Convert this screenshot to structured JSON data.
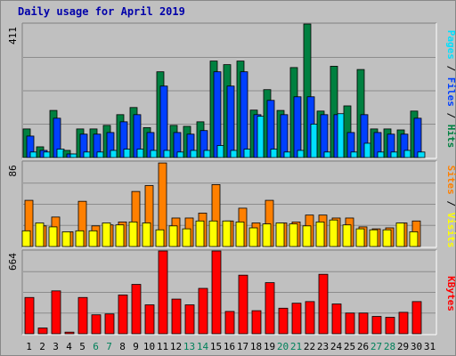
{
  "title": "Daily usage for April 2019",
  "chart_data": [
    {
      "type": "bar",
      "panel": "hits-files-pages",
      "ymax_label": "411",
      "ylim": [
        0,
        411
      ],
      "grid": true,
      "legend": [
        {
          "name": "Pages",
          "color": "#00e0ff"
        },
        {
          "name": "Files",
          "color": "#0040ff"
        },
        {
          "name": "Hits",
          "color": "#008040"
        }
      ],
      "categories": [
        "1",
        "2",
        "3",
        "4",
        "5",
        "6",
        "7",
        "8",
        "9",
        "10",
        "11",
        "12",
        "13",
        "14",
        "15",
        "16",
        "17",
        "18",
        "19",
        "20",
        "21",
        "22",
        "23",
        "24",
        "25",
        "26",
        "27",
        "28",
        "29",
        "30",
        "31"
      ],
      "weekend_days": [
        "6",
        "7",
        "13",
        "14",
        "20",
        "21",
        "27",
        "28"
      ],
      "series": [
        {
          "name": "Hits",
          "color": "#008040",
          "values": [
            88,
            33,
            145,
            22,
            88,
            88,
            99,
            132,
            154,
            92,
            264,
            99,
            96,
            110,
            297,
            286,
            297,
            146,
            209,
            145,
            277,
            411,
            143,
            281,
            159,
            271,
            88,
            88,
            85,
            143,
            null
          ]
        },
        {
          "name": "Files",
          "color": "#0040ff",
          "values": [
            66,
            22,
            121,
            11,
            72,
            72,
            77,
            110,
            132,
            77,
            220,
            77,
            72,
            83,
            264,
            220,
            264,
            132,
            176,
            132,
            187,
            187,
            132,
            132,
            77,
            132,
            77,
            72,
            72,
            121,
            null
          ]
        },
        {
          "name": "Pages",
          "color": "#00e0ff",
          "values": [
            17,
            17,
            26,
            11,
            17,
            17,
            22,
            26,
            26,
            22,
            22,
            17,
            22,
            22,
            37,
            22,
            26,
            127,
            26,
            17,
            22,
            103,
            17,
            135,
            17,
            44,
            17,
            17,
            22,
            17,
            null
          ]
        }
      ]
    },
    {
      "type": "bar",
      "panel": "visits-sites",
      "ymax_label": "86",
      "ylim": [
        0,
        86
      ],
      "grid": true,
      "legend": [
        {
          "name": "Sites",
          "color": "#ff8000"
        },
        {
          "name": "Visits",
          "color": "#ffff00"
        }
      ],
      "categories": [
        "1",
        "2",
        "3",
        "4",
        "5",
        "6",
        "7",
        "8",
        "9",
        "10",
        "11",
        "12",
        "13",
        "14",
        "15",
        "16",
        "17",
        "18",
        "19",
        "20",
        "21",
        "22",
        "23",
        "24",
        "25",
        "26",
        "27",
        "28",
        "29",
        "30",
        "31"
      ],
      "series": [
        {
          "name": "Sites",
          "color": "#ff8000",
          "values": [
            47,
            21,
            30,
            15,
            46,
            21,
            22,
            25,
            56,
            62,
            85,
            29,
            29,
            34,
            63,
            26,
            39,
            24,
            47,
            24,
            25,
            32,
            32,
            29,
            29,
            20,
            18,
            19,
            24,
            26,
            null
          ]
        },
        {
          "name": "Visits",
          "color": "#ffff00",
          "values": [
            16,
            24,
            20,
            15,
            16,
            16,
            24,
            22,
            25,
            24,
            17,
            21,
            18,
            26,
            26,
            26,
            25,
            19,
            23,
            24,
            23,
            21,
            25,
            27,
            22,
            18,
            17,
            17,
            24,
            15,
            null
          ]
        }
      ]
    },
    {
      "type": "bar",
      "panel": "kbytes",
      "ymax_label": "664",
      "ylim": [
        0,
        664
      ],
      "grid": true,
      "legend": [
        {
          "name": "KBytes",
          "color": "#ff0000"
        }
      ],
      "categories": [
        "1",
        "2",
        "3",
        "4",
        "5",
        "6",
        "7",
        "8",
        "9",
        "10",
        "11",
        "12",
        "13",
        "14",
        "15",
        "16",
        "17",
        "18",
        "19",
        "20",
        "21",
        "22",
        "23",
        "24",
        "25",
        "26",
        "27",
        "28",
        "29",
        "30",
        "31"
      ],
      "series": [
        {
          "name": "KBytes",
          "color": "#ff0000",
          "values": [
            291,
            46,
            344,
            13,
            291,
            152,
            159,
            311,
            396,
            232,
            664,
            278,
            232,
            364,
            664,
            179,
            470,
            185,
            410,
            205,
            245,
            258,
            477,
            239,
            166,
            166,
            139,
            132,
            172,
            258,
            null
          ]
        }
      ]
    }
  ]
}
